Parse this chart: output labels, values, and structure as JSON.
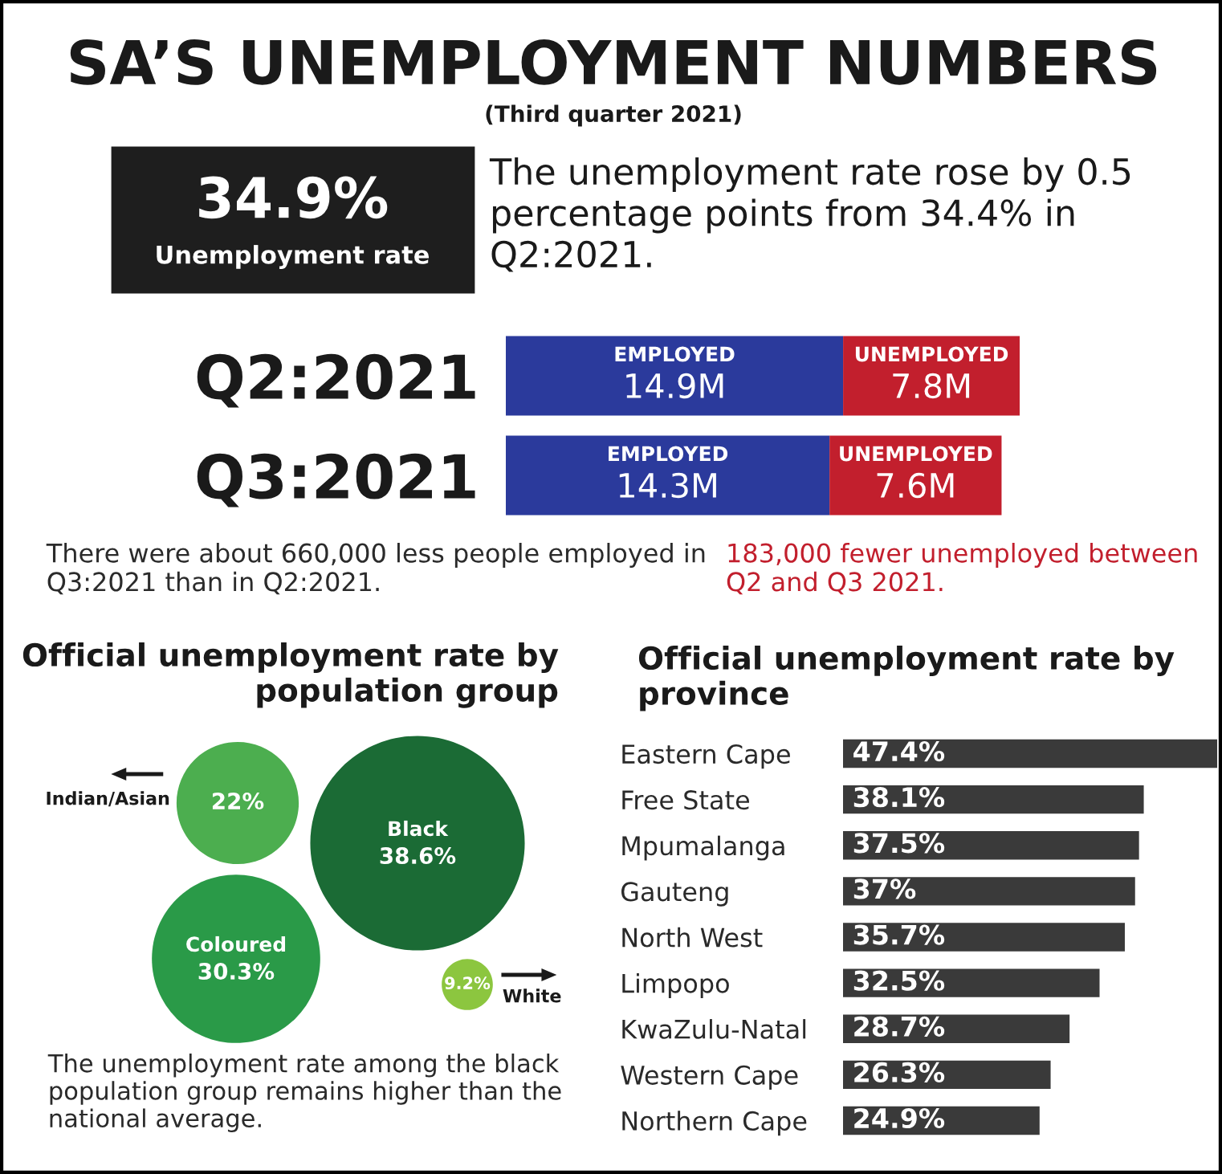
{
  "chart_data": [
    {
      "type": "other",
      "title": "SA’S UNEMPLOYMENT NUMBERS",
      "subtitle": "(Third quarter 2021)",
      "annotations": [
        "34.9%",
        "Unemployment rate",
        "The unemployment rate rose by 0.5 percentage points from 34.4% in Q2:2021."
      ]
    },
    {
      "type": "bar",
      "orientation": "horizontal",
      "stacked": true,
      "categories": [
        "Q2:2021",
        "Q3:2021"
      ],
      "series": [
        {
          "name": "EMPLOYED",
          "color": "#2b3a9c",
          "values": [
            14.9,
            14.3
          ],
          "value_labels": [
            "14.9M",
            "14.3M"
          ]
        },
        {
          "name": "UNEMPLOYED",
          "color": "#c21f2d",
          "values": [
            7.8,
            7.6
          ],
          "value_labels": [
            "7.8M",
            "7.6M"
          ]
        }
      ],
      "annotations": [
        "There were about 660,000 less people employed in Q3:2021 than in Q2:2021.",
        "183,000 fewer unemployed between Q2 and Q3 2021."
      ]
    },
    {
      "type": "other",
      "title": "Official unemployment rate by population group",
      "categories": [
        "Indian/Asian",
        "Black",
        "Coloured",
        "White"
      ],
      "values": [
        22,
        38.6,
        30.3,
        9.2
      ],
      "colors": [
        "#4cae4f",
        "#1b6b35",
        "#2a9a48",
        "#8cc63f"
      ],
      "value_labels": [
        "22%",
        "38.6%",
        "30.3%",
        "9.2%"
      ],
      "annotations": [
        "The unemployment rate among the black population group remains higher than the national average."
      ]
    },
    {
      "type": "bar",
      "orientation": "horizontal",
      "title": "Official unemployment rate by province",
      "categories": [
        "Eastern Cape",
        "Free State",
        "Mpumalanga",
        "Gauteng",
        "North West",
        "Limpopo",
        "KwaZulu-Natal",
        "Western Cape",
        "Northern Cape"
      ],
      "values": [
        47.4,
        38.1,
        37.5,
        37,
        35.7,
        32.5,
        28.7,
        26.3,
        24.9
      ],
      "color": "#3a3a3a",
      "value_labels": [
        "47.4%",
        "38.1%",
        "37.5%",
        "37%",
        "35.7%",
        "32.5%",
        "28.7%",
        "26.3%",
        "24.9%"
      ]
    }
  ]
}
